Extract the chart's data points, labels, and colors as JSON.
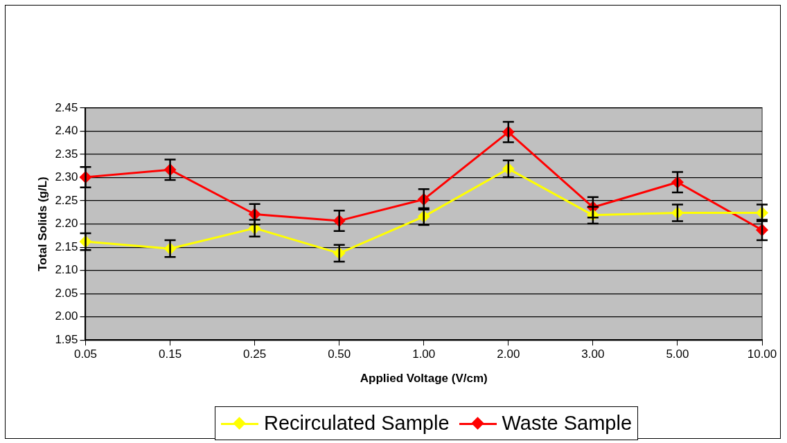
{
  "chart_data": {
    "type": "line",
    "xlabel": "Applied Voltage (V/cm)",
    "ylabel": "Total Solids (g/L)",
    "categories": [
      "0.05",
      "0.15",
      "0.25",
      "0.50",
      "1.00",
      "2.00",
      "3.00",
      "5.00",
      "10.00"
    ],
    "series": [
      {
        "name": "Recirculated Sample",
        "color": "#ffff00",
        "values": [
          2.162,
          2.147,
          2.191,
          2.137,
          2.216,
          2.319,
          2.219,
          2.224,
          2.224
        ],
        "errors": [
          0.018,
          0.018,
          0.018,
          0.018,
          0.018,
          0.018,
          0.018,
          0.018,
          0.018
        ]
      },
      {
        "name": "Waste Sample",
        "color": "#ff0000",
        "values": [
          2.301,
          2.317,
          2.221,
          2.207,
          2.253,
          2.398,
          2.236,
          2.29,
          2.187
        ],
        "errors": [
          0.022,
          0.022,
          0.022,
          0.022,
          0.022,
          0.022,
          0.022,
          0.022,
          0.022
        ]
      }
    ],
    "ylim": [
      1.95,
      2.45
    ],
    "yticks": [
      {
        "value": 1.95,
        "label": "1.95"
      },
      {
        "value": 2.0,
        "label": "2.00"
      },
      {
        "value": 2.05,
        "label": "2.05"
      },
      {
        "value": 2.1,
        "label": "2.10"
      },
      {
        "value": 2.15,
        "label": "2.15"
      },
      {
        "value": 2.2,
        "label": "2.20"
      },
      {
        "value": 2.25,
        "label": "2.25"
      },
      {
        "value": 2.3,
        "label": "2.30"
      },
      {
        "value": 2.35,
        "label": "2.35"
      },
      {
        "value": 2.4,
        "label": "2.40"
      },
      {
        "value": 2.45,
        "label": "2.45"
      }
    ],
    "grid": "y",
    "legend": "bottom",
    "marker": "diamond",
    "line_style": "solid"
  }
}
